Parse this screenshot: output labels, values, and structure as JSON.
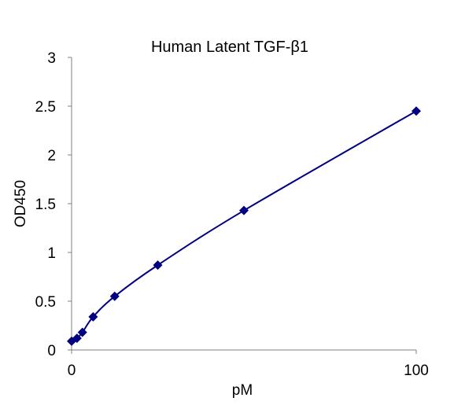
{
  "chart_data": {
    "type": "scatter",
    "title": "Human Latent TGF-β1",
    "xlabel": "pM",
    "ylabel": "OD450",
    "xlim": [
      0,
      100
    ],
    "ylim": [
      0,
      3
    ],
    "x_ticks": [
      "0",
      "100"
    ],
    "y_ticks": [
      "0",
      "0.5",
      "1",
      "1.5",
      "2",
      "2.5",
      "3"
    ],
    "grid": false,
    "legend": "none",
    "trendline": "smooth curve through points",
    "series": [
      {
        "x": [
          0,
          1.56,
          3.13,
          6.25,
          12.5,
          25,
          50,
          100
        ],
        "y": [
          0.09,
          0.12,
          0.18,
          0.34,
          0.55,
          0.87,
          1.43,
          2.45
        ]
      }
    ],
    "colors": {
      "marker": "#000080",
      "line": "#000080",
      "axis": "#808080"
    }
  }
}
